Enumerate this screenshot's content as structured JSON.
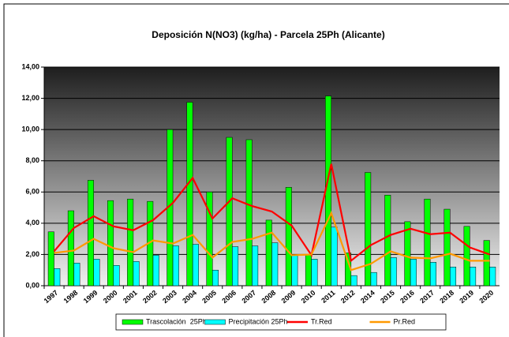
{
  "chart_data": {
    "type": "bar",
    "title": "Deposición N(NO3) (kg/ha) - Parcela 25Ph (Alicante)",
    "categories": [
      "1997",
      "1998",
      "1999",
      "2000",
      "2001",
      "2002",
      "2003",
      "2004",
      "2005",
      "2006",
      "2007",
      "2008",
      "2009",
      "2010",
      "2011",
      "2012",
      "2014",
      "2015",
      "2016",
      "2017",
      "2018",
      "2019",
      "2020"
    ],
    "series": [
      {
        "name": "Trascolación  25Ph",
        "type": "bar",
        "color": "#00ff00",
        "values": [
          3.45,
          4.8,
          6.75,
          5.45,
          5.55,
          5.4,
          10.0,
          11.75,
          6.0,
          9.5,
          9.35,
          4.2,
          6.3,
          2.0,
          12.15,
          2.1,
          7.25,
          5.8,
          4.1,
          5.55,
          4.9,
          3.8,
          2.9
        ]
      },
      {
        "name": "Precipitación 25Ph",
        "type": "bar",
        "color": "#00ffff",
        "values": [
          1.1,
          1.45,
          1.7,
          1.3,
          1.55,
          1.95,
          2.55,
          2.65,
          1.0,
          2.5,
          2.55,
          2.75,
          1.95,
          1.7,
          3.75,
          0.65,
          0.85,
          1.8,
          1.7,
          1.5,
          1.2,
          1.2,
          1.2
        ]
      },
      {
        "name": "Tr.Red",
        "type": "line",
        "color": "#ff0000",
        "values": [
          2.2,
          3.7,
          4.45,
          3.8,
          3.55,
          4.2,
          5.3,
          6.9,
          4.3,
          5.6,
          5.1,
          4.75,
          3.85,
          1.95,
          7.8,
          1.6,
          2.6,
          3.25,
          3.65,
          3.3,
          3.4,
          2.45,
          2.0
        ]
      },
      {
        "name": "Pr.Red",
        "type": "line",
        "color": "#ff9900",
        "values": [
          2.1,
          2.25,
          3.0,
          2.4,
          2.15,
          2.9,
          2.7,
          3.25,
          1.8,
          2.8,
          3.0,
          3.4,
          1.95,
          2.0,
          4.65,
          1.0,
          1.4,
          2.2,
          1.8,
          1.75,
          2.05,
          1.6,
          1.6
        ]
      }
    ],
    "ylim": [
      0,
      14
    ],
    "yticks": [
      {
        "value": 0,
        "label": "0,00"
      },
      {
        "value": 2,
        "label": "2,00"
      },
      {
        "value": 4,
        "label": "4,00"
      },
      {
        "value": 6,
        "label": "6,00"
      },
      {
        "value": 8,
        "label": "8,00"
      },
      {
        "value": 10,
        "label": "10,00"
      },
      {
        "value": 12,
        "label": "12,00"
      },
      {
        "value": 14,
        "label": "14,00"
      }
    ],
    "grid": true,
    "legend": "bottom"
  }
}
